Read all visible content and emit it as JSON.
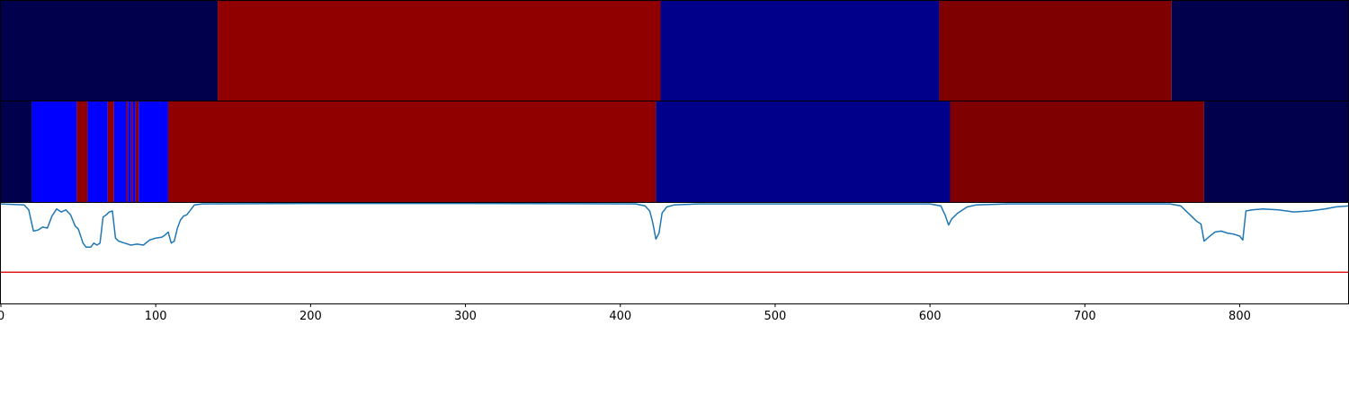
{
  "chart_data": [
    {
      "type": "heatmap",
      "title": "",
      "xlim": [
        0,
        870
      ],
      "segments": [
        {
          "start": 0,
          "end": 140,
          "color": "#00004d"
        },
        {
          "start": 140,
          "end": 426,
          "color": "#900000"
        },
        {
          "start": 426,
          "end": 606,
          "color": "#00008b"
        },
        {
          "start": 606,
          "end": 756,
          "color": "#7f0000"
        },
        {
          "start": 756,
          "end": 870,
          "color": "#00004d"
        }
      ]
    },
    {
      "type": "heatmap",
      "title": "",
      "xlim": [
        0,
        870
      ],
      "segments": [
        {
          "start": 0,
          "end": 20,
          "color": "#00004d"
        },
        {
          "start": 20,
          "end": 49,
          "color": "#0000ff"
        },
        {
          "start": 49,
          "end": 56,
          "color": "#900000"
        },
        {
          "start": 56,
          "end": 69,
          "color": "#0000ff"
        },
        {
          "start": 69,
          "end": 73,
          "color": "#900000"
        },
        {
          "start": 73,
          "end": 81,
          "color": "#0000ff"
        },
        {
          "start": 81,
          "end": 82,
          "color": "#900000"
        },
        {
          "start": 82,
          "end": 84,
          "color": "#0000ff"
        },
        {
          "start": 84,
          "end": 85,
          "color": "#900000"
        },
        {
          "start": 85,
          "end": 87,
          "color": "#0000ff"
        },
        {
          "start": 87,
          "end": 89,
          "color": "#900000"
        },
        {
          "start": 89,
          "end": 108,
          "color": "#0000ff"
        },
        {
          "start": 108,
          "end": 423,
          "color": "#900000"
        },
        {
          "start": 423,
          "end": 613,
          "color": "#00008b"
        },
        {
          "start": 613,
          "end": 777,
          "color": "#7f0000"
        },
        {
          "start": 777,
          "end": 870,
          "color": "#00004d"
        }
      ]
    },
    {
      "type": "line",
      "title": "",
      "xlabel": "",
      "ylabel": "",
      "xlim": [
        0,
        870
      ],
      "ylim": [
        0,
        1
      ],
      "xticks": [
        0,
        100,
        200,
        300,
        400,
        500,
        600,
        700,
        800
      ],
      "xtick_labels": [
        "0",
        "100",
        "200",
        "300",
        "400",
        "500",
        "600",
        "700",
        "800"
      ],
      "threshold": {
        "value": 0.31,
        "color": "#e31a1c"
      },
      "series": [
        {
          "color": "#1f77b4",
          "points": [
            [
              0,
              0.99
            ],
            [
              15,
              0.98
            ],
            [
              18,
              0.93
            ],
            [
              21,
              0.72
            ],
            [
              24,
              0.73
            ],
            [
              27,
              0.76
            ],
            [
              30,
              0.75
            ],
            [
              33,
              0.87
            ],
            [
              36,
              0.94
            ],
            [
              39,
              0.91
            ],
            [
              42,
              0.93
            ],
            [
              45,
              0.88
            ],
            [
              48,
              0.77
            ],
            [
              50,
              0.74
            ],
            [
              53,
              0.6
            ],
            [
              55,
              0.56
            ],
            [
              58,
              0.56
            ],
            [
              60,
              0.6
            ],
            [
              62,
              0.58
            ],
            [
              64,
              0.6
            ],
            [
              66,
              0.86
            ],
            [
              68,
              0.88
            ],
            [
              70,
              0.91
            ],
            [
              72,
              0.92
            ],
            [
              74,
              0.65
            ],
            [
              76,
              0.62
            ],
            [
              80,
              0.6
            ],
            [
              84,
              0.58
            ],
            [
              88,
              0.59
            ],
            [
              92,
              0.58
            ],
            [
              96,
              0.63
            ],
            [
              100,
              0.65
            ],
            [
              104,
              0.66
            ],
            [
              106,
              0.68
            ],
            [
              108,
              0.71
            ],
            [
              110,
              0.6
            ],
            [
              112,
              0.62
            ],
            [
              114,
              0.75
            ],
            [
              116,
              0.83
            ],
            [
              118,
              0.87
            ],
            [
              120,
              0.88
            ],
            [
              123,
              0.94
            ],
            [
              125,
              0.98
            ],
            [
              130,
              0.99
            ],
            [
              200,
              0.995
            ],
            [
              300,
              0.995
            ],
            [
              410,
              0.99
            ],
            [
              416,
              0.97
            ],
            [
              419,
              0.92
            ],
            [
              421,
              0.8
            ],
            [
              423,
              0.64
            ],
            [
              425,
              0.7
            ],
            [
              427,
              0.9
            ],
            [
              430,
              0.96
            ],
            [
              435,
              0.98
            ],
            [
              450,
              0.99
            ],
            [
              600,
              0.99
            ],
            [
              607,
              0.97
            ],
            [
              610,
              0.87
            ],
            [
              612,
              0.78
            ],
            [
              614,
              0.84
            ],
            [
              618,
              0.9
            ],
            [
              624,
              0.96
            ],
            [
              630,
              0.98
            ],
            [
              650,
              0.99
            ],
            [
              755,
              0.99
            ],
            [
              762,
              0.97
            ],
            [
              768,
              0.88
            ],
            [
              772,
              0.82
            ],
            [
              775,
              0.79
            ],
            [
              777,
              0.62
            ],
            [
              780,
              0.66
            ],
            [
              784,
              0.71
            ],
            [
              788,
              0.72
            ],
            [
              792,
              0.7
            ],
            [
              796,
              0.69
            ],
            [
              800,
              0.67
            ],
            [
              802,
              0.63
            ],
            [
              804,
              0.92
            ],
            [
              808,
              0.93
            ],
            [
              815,
              0.94
            ],
            [
              825,
              0.93
            ],
            [
              835,
              0.91
            ],
            [
              845,
              0.92
            ],
            [
              855,
              0.94
            ],
            [
              862,
              0.96
            ],
            [
              870,
              0.97
            ]
          ]
        }
      ]
    }
  ]
}
